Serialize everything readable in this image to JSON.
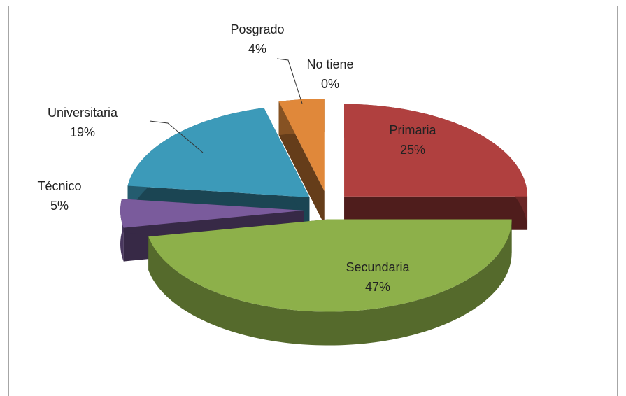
{
  "chart_data": {
    "type": "pie",
    "categories": [
      "Primaria",
      "Secundaria",
      "Técnico",
      "Universitaria",
      "Posgrado",
      "No tiene"
    ],
    "values": [
      25,
      47,
      5,
      19,
      4,
      0
    ],
    "value_labels": [
      "25%",
      "47%",
      "5%",
      "19%",
      "4%",
      "0%"
    ],
    "colors": [
      "#b0403f",
      "#8db04a",
      "#7a5b9c",
      "#3c9ab9",
      "#e0883a",
      "#d0d0d0"
    ]
  }
}
